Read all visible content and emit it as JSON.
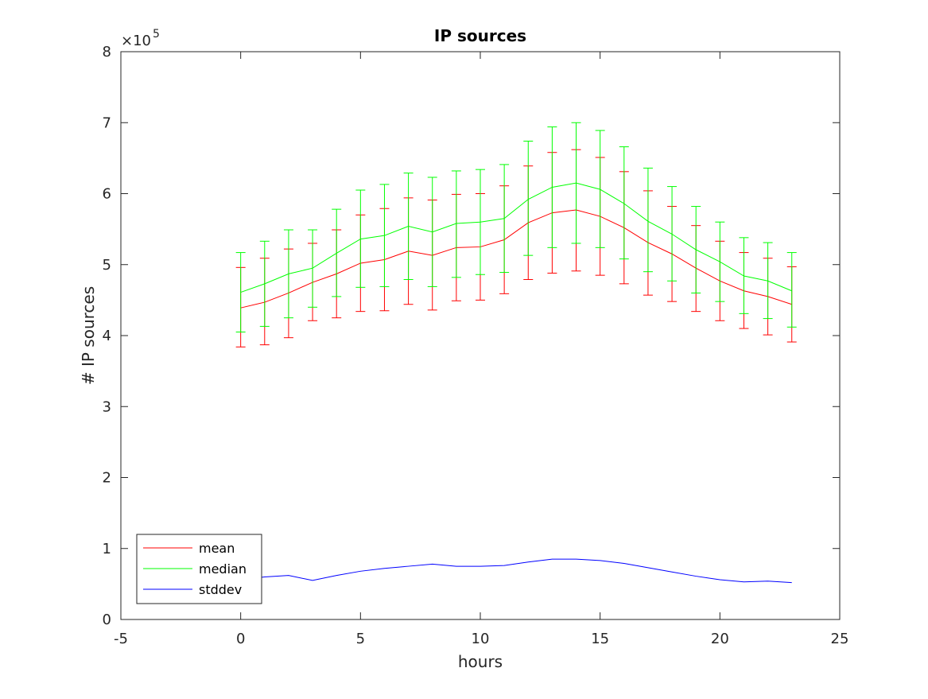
{
  "chart_data": {
    "type": "line",
    "title": "IP sources",
    "xlabel": "hours",
    "ylabel": "# IP sources",
    "y_exponent_label": "×10",
    "y_exponent_power": "5",
    "xlim": [
      -5,
      25
    ],
    "ylim": [
      0,
      800000
    ],
    "x_ticks": [
      -5,
      0,
      5,
      10,
      15,
      20,
      25
    ],
    "x_tick_labels": [
      "-5",
      "0",
      "5",
      "10",
      "15",
      "20",
      "25"
    ],
    "y_ticks": [
      0,
      100000,
      200000,
      300000,
      400000,
      500000,
      600000,
      700000,
      800000
    ],
    "y_tick_labels": [
      "0",
      "1",
      "2",
      "3",
      "4",
      "5",
      "6",
      "7",
      "8"
    ],
    "grid": false,
    "legend_position": "bottom-left",
    "x": [
      0,
      1,
      2,
      3,
      4,
      5,
      6,
      7,
      8,
      9,
      10,
      11,
      12,
      13,
      14,
      15,
      16,
      17,
      18,
      19,
      20,
      21,
      22,
      23
    ],
    "series": [
      {
        "name": "mean",
        "color": "#ff0000",
        "values": [
          439000,
          447000,
          460000,
          475000,
          487000,
          502000,
          507000,
          519000,
          513000,
          524000,
          525000,
          535000,
          559000,
          573000,
          577000,
          568000,
          552000,
          531000,
          515000,
          495000,
          477000,
          463000,
          455000,
          444000
        ],
        "error_low": [
          384000,
          387000,
          397000,
          421000,
          425000,
          434000,
          435000,
          444000,
          436000,
          449000,
          450000,
          459000,
          479000,
          488000,
          491000,
          485000,
          473000,
          457000,
          448000,
          434000,
          421000,
          410000,
          401000,
          391000
        ],
        "error_high": [
          496000,
          509000,
          522000,
          530000,
          549000,
          570000,
          579000,
          594000,
          591000,
          599000,
          600000,
          611000,
          639000,
          658000,
          662000,
          651000,
          631000,
          604000,
          582000,
          555000,
          533000,
          517000,
          509000,
          497000
        ]
      },
      {
        "name": "median",
        "color": "#00ff00",
        "values": [
          461000,
          473000,
          487000,
          495000,
          516000,
          536000,
          541000,
          554000,
          546000,
          558000,
          560000,
          565000,
          592000,
          609000,
          615000,
          606000,
          586000,
          561000,
          543000,
          521000,
          504000,
          484000,
          477000,
          463000
        ],
        "error_low": [
          405000,
          413000,
          425000,
          440000,
          455000,
          468000,
          469000,
          479000,
          469000,
          482000,
          486000,
          489000,
          513000,
          524000,
          530000,
          524000,
          508000,
          490000,
          477000,
          460000,
          448000,
          431000,
          424000,
          412000
        ],
        "error_high": [
          517000,
          533000,
          549000,
          549000,
          578000,
          605000,
          613000,
          629000,
          623000,
          632000,
          634000,
          641000,
          674000,
          694000,
          700000,
          689000,
          666000,
          636000,
          610000,
          582000,
          560000,
          538000,
          531000,
          517000
        ]
      },
      {
        "name": "stddev",
        "color": "#0000ff",
        "values": [
          56000,
          60000,
          62000,
          55000,
          62000,
          68000,
          72000,
          75000,
          78000,
          75000,
          75000,
          76000,
          81000,
          85000,
          85000,
          83000,
          79000,
          73000,
          67000,
          61000,
          56000,
          53000,
          54000,
          52000
        ]
      }
    ]
  }
}
